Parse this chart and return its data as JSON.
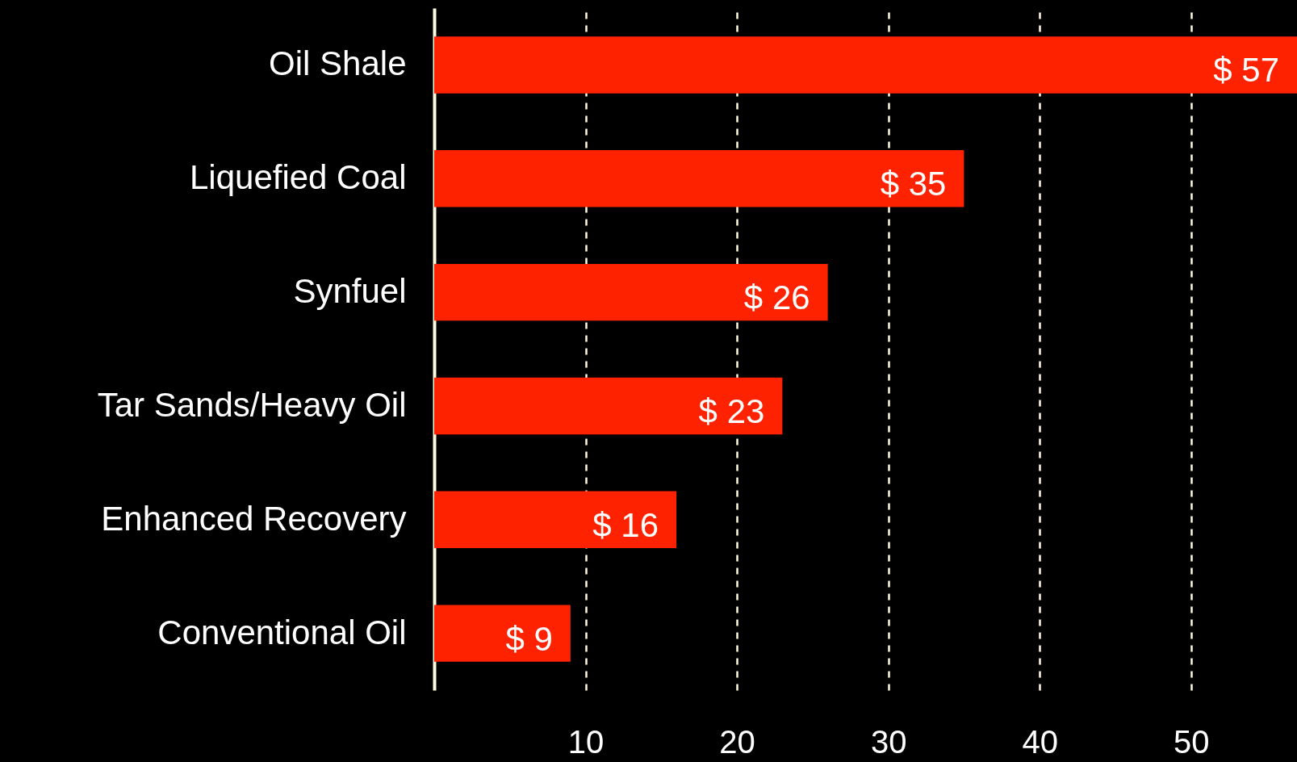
{
  "chart_data": {
    "type": "bar",
    "orientation": "horizontal",
    "categories": [
      "Oil Shale",
      "Liquefied Coal",
      "Synfuel",
      "Tar Sands/Heavy Oil",
      "Enhanced Recovery",
      "Conventional Oil"
    ],
    "values": [
      57,
      35,
      26,
      23,
      16,
      9
    ],
    "value_labels": [
      "$ 57",
      "$ 35",
      "$ 26",
      "$ 23",
      "$ 16",
      "$ 9"
    ],
    "color": "#ff2200",
    "xlim": [
      0,
      57
    ],
    "xticks": [
      10,
      20,
      30,
      40,
      50
    ],
    "grid": "x"
  }
}
